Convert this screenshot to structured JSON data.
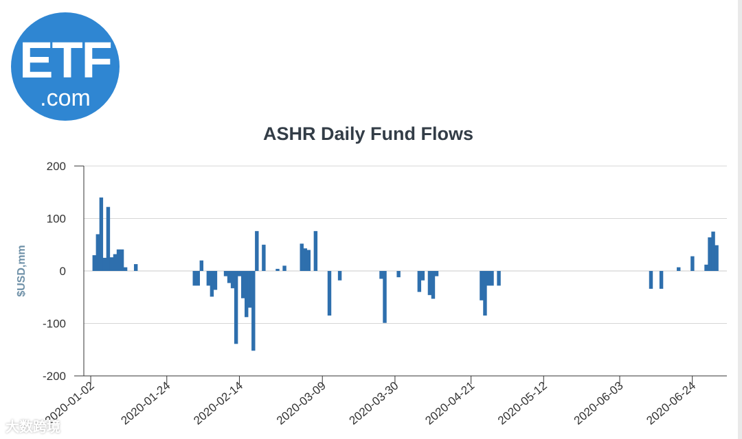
{
  "logo": {
    "main": "ETF",
    "sub": ".com",
    "color": "#2f86d2"
  },
  "watermark": {
    "text": "大数跨境"
  },
  "chart_data": {
    "type": "bar",
    "title": "ASHR Daily Fund Flows",
    "ylabel": "$USD,mm",
    "xlabel": "",
    "ylim": [
      -200,
      200
    ],
    "yticks": [
      -200,
      -100,
      0,
      100,
      200
    ],
    "xlim": [
      "2019-12-31",
      "2020-07-04"
    ],
    "xticks": [
      "2020-01-02",
      "2020-01-24",
      "2020-02-14",
      "2020-03-09",
      "2020-03-30",
      "2020-04-21",
      "2020-05-12",
      "2020-06-03",
      "2020-06-24"
    ],
    "bar_color": "#2e6fad",
    "grid": true,
    "legend": "none",
    "series": [
      {
        "x": [
          "2020-01-03",
          "2020-01-04",
          "2020-01-05",
          "2020-01-06",
          "2020-01-07",
          "2020-01-08",
          "2020-01-09",
          "2020-01-10",
          "2020-01-11",
          "2020-01-12",
          "2020-01-13",
          "2020-01-15",
          "2020-02-01",
          "2020-02-02",
          "2020-02-03",
          "2020-02-05",
          "2020-02-06",
          "2020-02-07",
          "2020-02-10",
          "2020-02-11",
          "2020-02-12",
          "2020-02-13",
          "2020-02-14",
          "2020-02-15",
          "2020-02-16",
          "2020-02-17",
          "2020-02-18",
          "2020-02-19",
          "2020-02-20",
          "2020-02-21",
          "2020-02-22",
          "2020-02-25",
          "2020-02-27",
          "2020-02-28",
          "2020-03-03",
          "2020-03-04",
          "2020-03-05",
          "2020-03-07",
          "2020-03-11",
          "2020-03-14",
          "2020-03-15",
          "2020-03-26",
          "2020-03-27",
          "2020-03-31",
          "2020-04-06",
          "2020-04-07",
          "2020-04-09",
          "2020-04-10",
          "2020-04-11",
          "2020-04-12",
          "2020-04-24",
          "2020-04-25",
          "2020-04-26",
          "2020-04-27",
          "2020-04-29",
          "2020-06-12",
          "2020-06-15",
          "2020-06-20",
          "2020-06-24",
          "2020-06-28",
          "2020-06-29",
          "2020-06-30",
          "2020-07-01"
        ],
        "values": [
          30,
          70,
          140,
          25,
          122,
          26,
          32,
          41,
          41,
          7,
          0,
          13,
          -28,
          -28,
          20,
          -28,
          -49,
          -36,
          -10,
          -23,
          -33,
          -139,
          -10,
          -52,
          -88,
          -70,
          -152,
          76,
          0,
          50,
          0,
          4,
          10,
          0,
          52,
          43,
          40,
          76,
          -85,
          -18,
          0,
          -15,
          -99,
          -12,
          -40,
          -18,
          -46,
          -53,
          -10,
          0,
          -56,
          -85,
          -28,
          -28,
          -28,
          -34,
          -34,
          7,
          28,
          12,
          64,
          75,
          49
        ]
      }
    ]
  }
}
